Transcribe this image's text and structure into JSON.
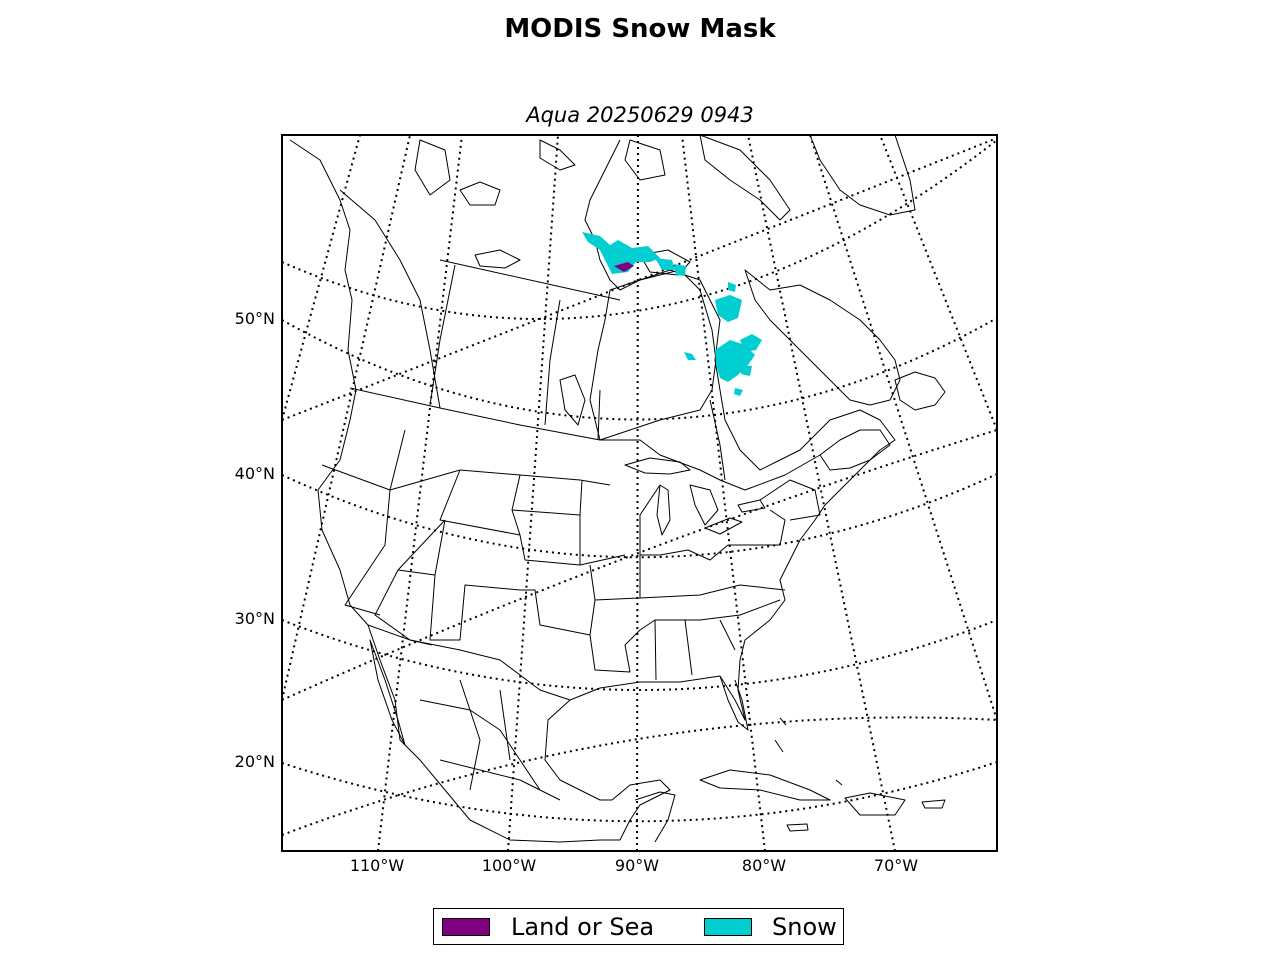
{
  "title": "MODIS Snow Mask",
  "subtitle": "Aqua 20250629 0943",
  "colors": {
    "land_or_sea": "#800080",
    "snow": "#00CED1",
    "coast": "#000000",
    "graticule": "#000000"
  },
  "lat_labels": [
    "50°N",
    "40°N",
    "30°N",
    "20°N"
  ],
  "lon_labels": [
    "110°W",
    "100°W",
    "90°W",
    "80°W",
    "70°W"
  ],
  "legend": {
    "items": [
      {
        "label": "Land or Sea",
        "color": "#800080"
      },
      {
        "label": "Snow",
        "color": "#00CED1"
      }
    ]
  }
}
